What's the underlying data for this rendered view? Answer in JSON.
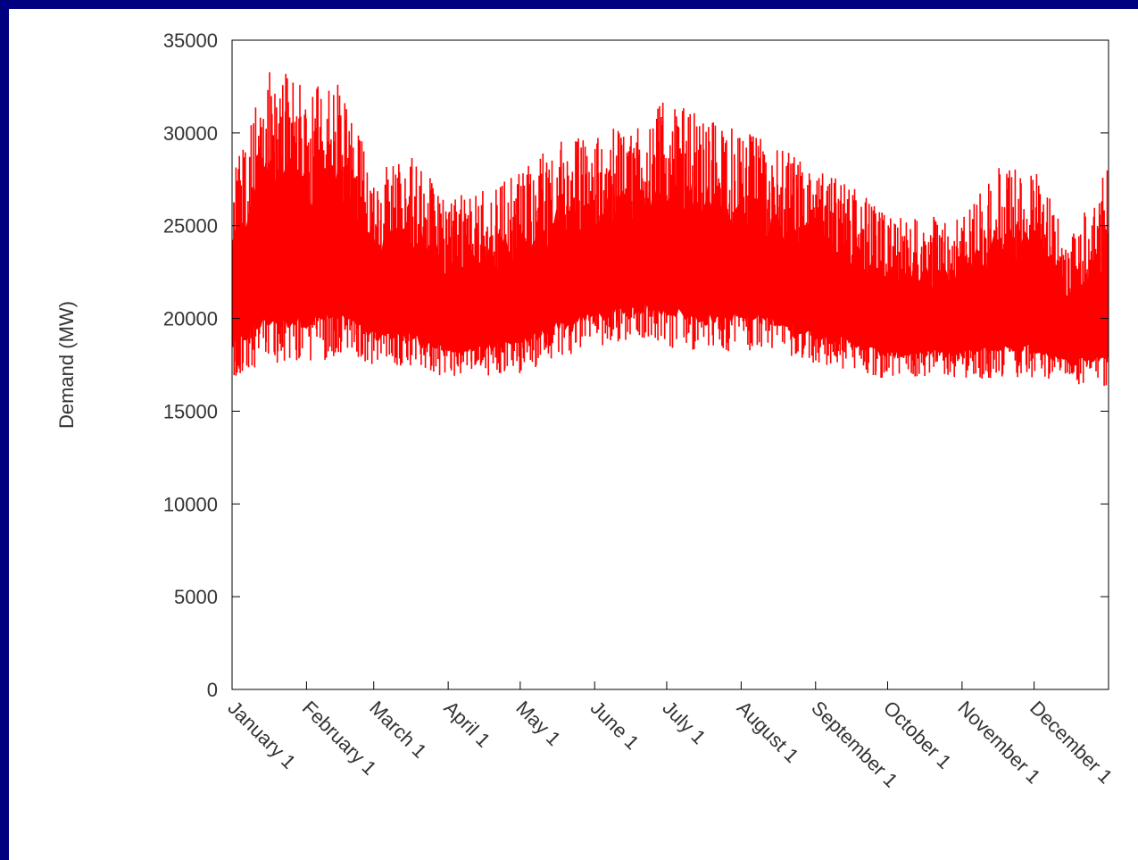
{
  "colors": {
    "background_border": "#000080",
    "plot_background": "#ffffff",
    "series_color": "#ff0000",
    "axis_color": "#000000",
    "text_color": "#333333"
  },
  "chart_data": {
    "type": "area",
    "title": "",
    "xlabel": "",
    "ylabel": "Demand (MW)",
    "ylim": [
      0,
      35000
    ],
    "yticks": [
      0,
      5000,
      10000,
      15000,
      20000,
      25000,
      30000,
      35000
    ],
    "xlim": [
      "January 1",
      "December 31"
    ],
    "xticks": [
      "January 1",
      "February 1",
      "March 1",
      "April 1",
      "May 1",
      "June 1",
      "July 1",
      "August 1",
      "September 1",
      "October 1",
      "November 1",
      "December 1"
    ],
    "grid": false,
    "legend": "none",
    "series": [
      {
        "description_of_band": "hourly demand, daily min–max envelope (approx.)",
        "x": [
          "Jan 1",
          "Jan 15",
          "Feb 1",
          "Feb 15",
          "Mar 1",
          "Mar 15",
          "Apr 1",
          "Apr 15",
          "May 1",
          "May 15",
          "Jun 1",
          "Jun 15",
          "Jul 1",
          "Jul 15",
          "Aug 1",
          "Aug 15",
          "Sep 1",
          "Sep 15",
          "Oct 1",
          "Oct 15",
          "Nov 1",
          "Nov 15",
          "Dec 1",
          "Dec 15",
          "Dec 31"
        ],
        "low": [
          16800,
          17500,
          17600,
          17900,
          17500,
          17400,
          16700,
          16900,
          17000,
          17800,
          18400,
          18800,
          18500,
          18000,
          18300,
          18200,
          17500,
          17200,
          16700,
          16900,
          16800,
          16600,
          16700,
          16400,
          16200
        ],
        "high": [
          28000,
          33600,
          32800,
          32800,
          28000,
          29000,
          26500,
          27000,
          28000,
          29500,
          30000,
          30500,
          31800,
          31000,
          30200,
          29500,
          28000,
          27500,
          25500,
          25500,
          25500,
          28200,
          28200,
          24500,
          28000
        ]
      }
    ]
  }
}
